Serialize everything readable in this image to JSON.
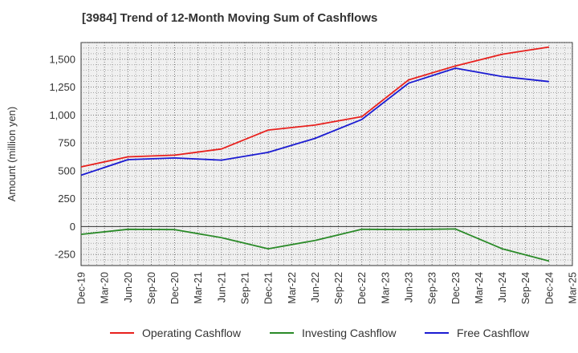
{
  "chart_data": {
    "type": "line",
    "title": "[3984]  Trend of 12-Month Moving Sum of Cashflows",
    "xlabel": "",
    "ylabel": "Amount (million yen)",
    "ylim": [
      -350,
      1650
    ],
    "y_ticks": [
      -250,
      0,
      250,
      500,
      750,
      1000,
      1250,
      1500
    ],
    "y_tick_labels": [
      "-250",
      "0",
      "250",
      "500",
      "750",
      "1,000",
      "1,250",
      "1,500"
    ],
    "categories": [
      "Dec-19",
      "Mar-20",
      "Jun-20",
      "Sep-20",
      "Dec-20",
      "Mar-21",
      "Jun-21",
      "Sep-21",
      "Dec-21",
      "Mar-22",
      "Jun-22",
      "Sep-22",
      "Dec-22",
      "Mar-23",
      "Jun-23",
      "Sep-23",
      "Dec-23",
      "Mar-24",
      "Jun-24",
      "Sep-24",
      "Dec-24",
      "Mar-25"
    ],
    "grid": true,
    "legend_position": "bottom",
    "series": [
      {
        "name": "Operating Cashflow",
        "color": "#e8201d",
        "points": [
          [
            0,
            535
          ],
          [
            2,
            625
          ],
          [
            4,
            640
          ],
          [
            6,
            695
          ],
          [
            8,
            865
          ],
          [
            10,
            910
          ],
          [
            12,
            985
          ],
          [
            14,
            1315
          ],
          [
            16,
            1440
          ],
          [
            18,
            1545
          ],
          [
            20,
            1610
          ]
        ]
      },
      {
        "name": "Investing Cashflow",
        "color": "#2a8a28",
        "points": [
          [
            0,
            -70
          ],
          [
            2,
            -25
          ],
          [
            4,
            -28
          ],
          [
            6,
            -100
          ],
          [
            8,
            -200
          ],
          [
            10,
            -125
          ],
          [
            12,
            -25
          ],
          [
            14,
            -28
          ],
          [
            16,
            -22
          ],
          [
            18,
            -200
          ],
          [
            20,
            -310
          ]
        ]
      },
      {
        "name": "Free Cashflow",
        "color": "#1b1bd2",
        "points": [
          [
            0,
            460
          ],
          [
            2,
            600
          ],
          [
            4,
            615
          ],
          [
            6,
            595
          ],
          [
            8,
            665
          ],
          [
            10,
            790
          ],
          [
            12,
            960
          ],
          [
            14,
            1285
          ],
          [
            16,
            1420
          ],
          [
            18,
            1345
          ],
          [
            20,
            1300
          ]
        ]
      }
    ]
  }
}
